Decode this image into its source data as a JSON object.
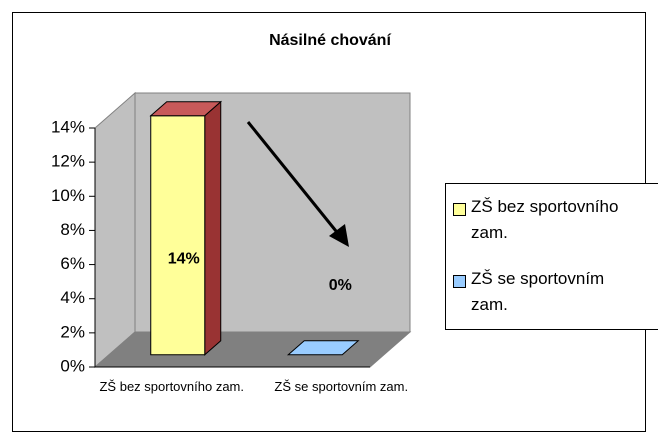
{
  "chart_data": {
    "type": "bar3d",
    "title": "Násilné chování",
    "categories": [
      "ZŠ bez sportovního zam.",
      "ZŠ se sportovním zam."
    ],
    "values": [
      14,
      0
    ],
    "value_labels": [
      "14%",
      "0%"
    ],
    "colors": [
      "#ffff99",
      "#99ccff"
    ],
    "ylim": [
      0,
      14
    ],
    "yticks": [
      {
        "value": 0,
        "label": "0%"
      },
      {
        "value": 2,
        "label": "2%"
      },
      {
        "value": 4,
        "label": "4%"
      },
      {
        "value": 6,
        "label": "6%"
      },
      {
        "value": 8,
        "label": "8%"
      },
      {
        "value": 10,
        "label": "10%"
      },
      {
        "value": 12,
        "label": "12%"
      },
      {
        "value": 14,
        "label": "14%"
      }
    ],
    "legend": "right"
  }
}
